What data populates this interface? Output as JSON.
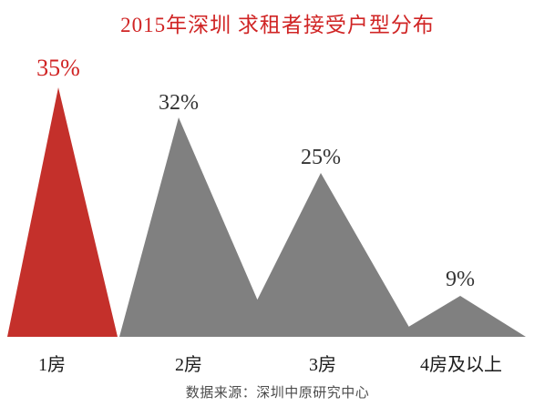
{
  "page": {
    "background": "#ffffff"
  },
  "chart_data": {
    "type": "bar",
    "shape": "triangle-peaks",
    "title": "2015年深圳 求租者接受户型分布",
    "title_color": "#d02424",
    "categories": [
      "1房",
      "2房",
      "3房",
      "4房及以上"
    ],
    "values": [
      35,
      32,
      25,
      9
    ],
    "value_labels": [
      "35%",
      "32%",
      "25%",
      "9%"
    ],
    "bar_colors": [
      "#c4302b",
      "#808080",
      "#808080",
      "#808080"
    ],
    "value_label_colors": [
      "#d02424",
      "#333333",
      "#333333",
      "#333333"
    ],
    "category_label_color": "#1a1a1a",
    "highlighted_category": "1房",
    "xlabel": "",
    "ylabel": "",
    "ylim": [
      0,
      40
    ],
    "grid": false,
    "axes_visible": false,
    "legend": false
  },
  "footer": {
    "source_note": "数据来源：深圳中原研究中心",
    "color": "#4d4d4d"
  }
}
